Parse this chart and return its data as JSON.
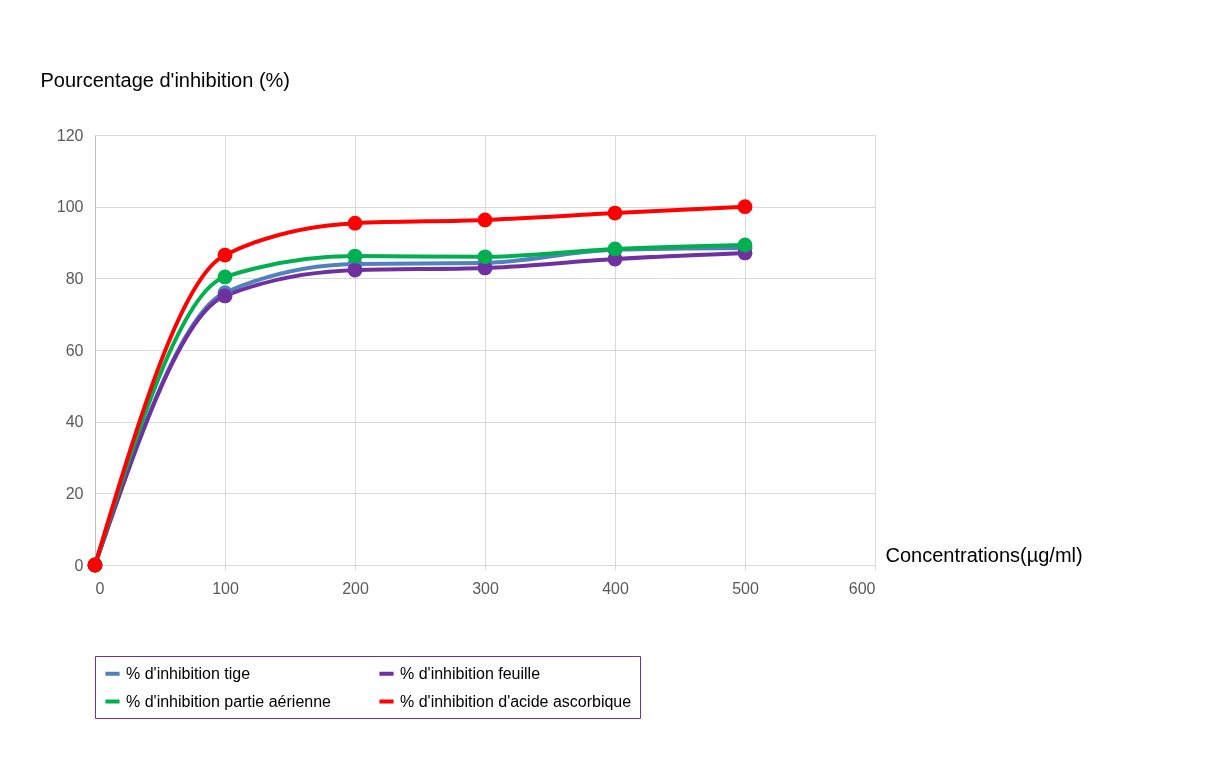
{
  "chart_data": {
    "type": "line",
    "xlabel": "Concentrations(µg/ml)",
    "ylabel": "Pourcentage d'inhibition (%)",
    "x": [
      0,
      100,
      200,
      300,
      400,
      500
    ],
    "series": [
      {
        "name": "% d'inhibition tige",
        "color": "#4f81bd",
        "values": [
          0,
          76,
          84,
          84.3,
          88,
          88.5
        ]
      },
      {
        "name": "% d'inhibition feuille",
        "color": "#7030a0",
        "values": [
          0,
          75.1,
          82.3,
          82.9,
          85.4,
          87.1
        ]
      },
      {
        "name": "% d'inhibition partie aérienne",
        "color": "#00b050",
        "values": [
          0,
          80.4,
          86.2,
          86,
          88.2,
          89.3
        ]
      },
      {
        "name": "% d'inhibition d'acide ascorbique",
        "color": "#ff0000",
        "values": [
          0,
          86.5,
          95.4,
          96.3,
          98.2,
          100
        ]
      }
    ],
    "xlim": [
      0,
      600
    ],
    "xticks": [
      0,
      100,
      200,
      300,
      400,
      500,
      600
    ],
    "ylim": [
      0,
      120
    ],
    "yticks": [
      0,
      20,
      40,
      60,
      80,
      100,
      120
    ],
    "grid": true,
    "legend": "bottom",
    "marker": "circle",
    "line_style": "solid"
  }
}
